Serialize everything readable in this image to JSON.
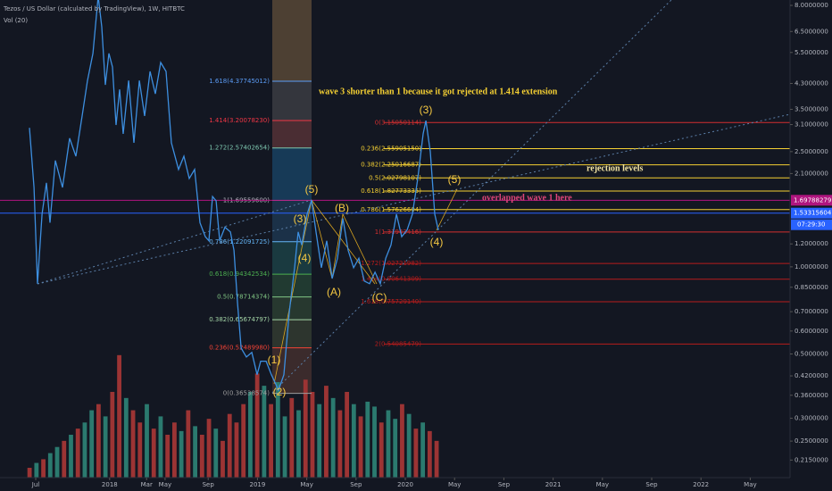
{
  "chart_data": {
    "type": "line",
    "title": "Tezos / US Dollar (calculated by TradingView), 1W, HITBTC",
    "subtitle": "Vol (20)",
    "log_scale": true,
    "xlim": [
      -2.9,
      61.23
    ],
    "xticks": [
      {
        "value": 0,
        "label": "Jul"
      },
      {
        "value": 6,
        "label": "2018"
      },
      {
        "value": 9,
        "label": "Mar"
      },
      {
        "value": 10.5,
        "label": "May"
      },
      {
        "value": 14,
        "label": "Sep"
      },
      {
        "value": 18,
        "label": "2019"
      },
      {
        "value": 22,
        "label": "May"
      },
      {
        "value": 26,
        "label": "Sep"
      },
      {
        "value": 30,
        "label": "2020"
      },
      {
        "value": 34,
        "label": "May"
      },
      {
        "value": 38,
        "label": "Sep"
      },
      {
        "value": 42,
        "label": "2021"
      },
      {
        "value": 46,
        "label": "May"
      },
      {
        "value": 50,
        "label": "Sep"
      },
      {
        "value": 54,
        "label": "2022"
      },
      {
        "value": 58,
        "label": "May"
      }
    ],
    "ylim": [
      0.187,
      8.35
    ],
    "yticks": [
      {
        "value": 8,
        "label": "8.0000000"
      },
      {
        "value": 6.5,
        "label": "6.5000000"
      },
      {
        "value": 5.5,
        "label": "5.5000000"
      },
      {
        "value": 4.3,
        "label": "4.3000000"
      },
      {
        "value": 3.5,
        "label": "3.5000000"
      },
      {
        "value": 3.1,
        "label": "3.1000000"
      },
      {
        "value": 2.5,
        "label": "2.5000000"
      },
      {
        "value": 2.1,
        "label": "2.1000000"
      },
      {
        "value": 1.2,
        "label": "1.2000000"
      },
      {
        "value": 1,
        "label": "1.0000000"
      },
      {
        "value": 0.85,
        "label": "0.8500000"
      },
      {
        "value": 0.7,
        "label": "0.7000000"
      },
      {
        "value": 0.6,
        "label": "0.6000000"
      },
      {
        "value": 0.5,
        "label": "0.5000000"
      },
      {
        "value": 0.42,
        "label": "0.4200000"
      },
      {
        "value": 0.36,
        "label": "0.3600000"
      },
      {
        "value": 0.3,
        "label": "0.3000000"
      },
      {
        "value": 0.25,
        "label": "0.2500000"
      },
      {
        "value": 0.215,
        "label": "0.2150000"
      }
    ],
    "series": [
      {
        "color": "#3d8fe0",
        "x": [
          -0.51,
          -0.14,
          0.14,
          0.51,
          0.87,
          1.16,
          1.59,
          2.17,
          2.75,
          3.26,
          3.77,
          4.2,
          4.64,
          5.07,
          5.36,
          5.65,
          5.94,
          6.23,
          6.52,
          6.81,
          7.1,
          7.54,
          7.97,
          8.41,
          8.84,
          9.28,
          9.71,
          10.14,
          10.58,
          11.01,
          11.59,
          12.03,
          12.46,
          12.9,
          13.33,
          13.77,
          14.06,
          14.35,
          14.64,
          14.93,
          15.36,
          15.8,
          16.09,
          16.38,
          16.67,
          17.1,
          17.54,
          17.97,
          18.26,
          18.7,
          19.13,
          19.71,
          20.14,
          20.58,
          21.01,
          21.3,
          21.59,
          22.03,
          22.39,
          22.75,
          23.19,
          23.62,
          24.06,
          24.49,
          24.93,
          25.36,
          25.8,
          26.23,
          26.67,
          27.1,
          27.54,
          27.97,
          28.41,
          28.84,
          29.28,
          29.71,
          30.14,
          30.58,
          31.01,
          31.45,
          31.67,
          32.03,
          32.39,
          32.68
        ],
        "values": [
          3.02,
          1.88,
          0.874,
          1.52,
          1.95,
          1.42,
          2.33,
          1.88,
          2.78,
          2.41,
          3.32,
          4.4,
          5.46,
          8.6,
          6.74,
          4.25,
          5.46,
          4.9,
          3.09,
          4.1,
          2.88,
          4.4,
          2.68,
          4.4,
          3.32,
          4.73,
          3.96,
          5.08,
          4.73,
          2.68,
          2.17,
          2.41,
          2.02,
          2.17,
          1.42,
          1.27,
          1.23,
          1.75,
          1.69,
          1.23,
          1.37,
          1.32,
          1.14,
          0.748,
          0.524,
          0.488,
          0.506,
          0.424,
          0.472,
          0.472,
          0.424,
          0.375,
          0.424,
          0.696,
          0.993,
          1.32,
          1.19,
          1.52,
          1.7,
          1.32,
          0.993,
          1.23,
          0.912,
          1.07,
          1.47,
          1.14,
          0.993,
          1.07,
          0.893,
          0.874,
          0.958,
          0.874,
          1.07,
          1.19,
          1.52,
          1.27,
          1.34,
          1.52,
          2.02,
          2.88,
          3.2,
          2.5,
          1.52,
          1.34
        ]
      }
    ],
    "volume": {
      "vol_ylim": [
        0,
        390
      ],
      "x": [
        -0.5,
        0.06,
        0.62,
        1.18,
        1.74,
        2.3,
        2.86,
        3.42,
        3.98,
        4.54,
        5.1,
        5.66,
        6.22,
        6.78,
        7.34,
        7.9,
        8.46,
        9.02,
        9.58,
        10.14,
        10.7,
        11.26,
        11.82,
        12.38,
        12.94,
        13.5,
        14.06,
        14.62,
        15.18,
        15.74,
        16.3,
        16.86,
        17.42,
        17.98,
        18.54,
        19.1,
        19.66,
        20.22,
        20.78,
        21.34,
        21.9,
        22.46,
        23.02,
        23.58,
        24.14,
        24.7,
        25.26,
        25.82,
        26.38,
        26.94,
        27.5,
        28.06,
        28.62,
        29.18,
        29.74,
        30.3,
        30.86,
        31.42,
        31.98,
        32.54
      ],
      "values": [
        8,
        12,
        15,
        20,
        25,
        30,
        35,
        40,
        45,
        55,
        60,
        50,
        70,
        100,
        65,
        55,
        45,
        60,
        40,
        50,
        35,
        45,
        38,
        55,
        42,
        35,
        48,
        40,
        30,
        52,
        45,
        60,
        70,
        85,
        75,
        60,
        78,
        50,
        65,
        55,
        80,
        70,
        60,
        75,
        65,
        55,
        70,
        60,
        50,
        62,
        58,
        45,
        55,
        48,
        60,
        52,
        40,
        45,
        38,
        30
      ],
      "colors": [
        "#9c3434",
        "#2b7a6f",
        "#9c3434",
        "#2b7a6f",
        "#2b7a6f",
        "#9c3434",
        "#2b7a6f",
        "#9c3434",
        "#2b7a6f",
        "#2b7a6f",
        "#9c3434",
        "#2b7a6f",
        "#9c3434",
        "#9c3434",
        "#2b7a6f",
        "#9c3434",
        "#9c3434",
        "#2b7a6f",
        "#9c3434",
        "#2b7a6f",
        "#9c3434",
        "#9c3434",
        "#2b7a6f",
        "#9c3434",
        "#2b7a6f",
        "#9c3434",
        "#9c3434",
        "#2b7a6f",
        "#9c3434",
        "#9c3434",
        "#9c3434",
        "#9c3434",
        "#2b7a6f",
        "#9c3434",
        "#2b7a6f",
        "#9c3434",
        "#2b7a6f",
        "#2b7a6f",
        "#9c3434",
        "#2b7a6f",
        "#9c3434",
        "#9c3434",
        "#2b7a6f",
        "#9c3434",
        "#2b7a6f",
        "#9c3434",
        "#9c3434",
        "#2b7a6f",
        "#9c3434",
        "#2b7a6f",
        "#2b7a6f",
        "#9c3434",
        "#2b7a6f",
        "#2b7a6f",
        "#9c3434",
        "#2b7a6f",
        "#9c3434",
        "#2b7a6f",
        "#9c3434",
        "#9c3434"
      ]
    },
    "fib_left": {
      "top_color": "#4d4033",
      "levels": [
        {
          "value": 4.37745012,
          "label": "1.618(4.37745012)",
          "color": "#5b9cf6",
          "zone": "#34363d"
        },
        {
          "value": 3.2007823,
          "label": "1.414(3.20078230)",
          "color": "#f23645",
          "zone": "#4a2d33"
        },
        {
          "value": 2.57402654,
          "label": "1.272(2.57402654)",
          "color": "#7ec8b0",
          "zone": "#173a57"
        },
        {
          "value": 1.695596,
          "label": "1(1.69559600)",
          "color": "#b2b5be",
          "zone": "#1b3148"
        },
        {
          "value": 1.22091725,
          "label": "0.786(1.22091725)",
          "color": "#64b5f6",
          "zone": "#1a3a40"
        },
        {
          "value": 0.94342534,
          "label": "0.618(0.94342534)",
          "color": "#4caf50",
          "zone": "#213a31"
        },
        {
          "value": 0.78714374,
          "label": "0.5(0.78714374)",
          "color": "#81c784",
          "zone": "#27382f"
        },
        {
          "value": 0.65674797,
          "label": "0.382(0.65674797)",
          "color": "#a5d6a7",
          "zone": "#2d352e"
        },
        {
          "value": 0.5248998,
          "label": "0.236(0.52489980)",
          "color": "#f44336",
          "zone": "#3b2b2c"
        },
        {
          "value": 0.36538574,
          "label": "0(0.36538574)",
          "color": "#9e9e9e",
          "zone": ""
        }
      ]
    },
    "fib_right": {
      "levels": [
        {
          "value": 3.15050114,
          "label": "0(3.15050114)",
          "color": "#d32f2f"
        },
        {
          "value": 2.5590515,
          "label": "0.236(2.55905150)",
          "color": "#f5d033"
        },
        {
          "value": 2.25016687,
          "label": "0.382(2.25016687)",
          "color": "#f5d033"
        },
        {
          "value": 2.02798107,
          "label": "0.5(2.02798107)",
          "color": "#f5d033"
        },
        {
          "value": 1.82773335,
          "label": "0.618(1.82773335)",
          "color": "#f5d033"
        },
        {
          "value": 1.57626604,
          "label": "0.786(1.57626604)",
          "color": "#f5d033"
        },
        {
          "value": 1.31943416,
          "label": "1(1.31943416)",
          "color": "#d32f2f"
        },
        {
          "value": 1.02721982,
          "label": "1.272(1.02721982)",
          "color": "#b71c1c"
        },
        {
          "value": 0.90641309,
          "label": "1.414(0.90641309)",
          "color": "#b71c1c"
        },
        {
          "value": 0.7572914,
          "label": "1.618(0.75729140)",
          "color": "#b71c1c"
        },
        {
          "value": 0.54085479,
          "label": "2(0.54085479)",
          "color": "#b71c1c"
        }
      ]
    },
    "price_labels": [
      {
        "value": 1.69788279,
        "color": "#b0157f"
      },
      {
        "value": 1.53315604,
        "color": "#2962ff"
      }
    ],
    "countdown": "07:29:30",
    "waves": [
      "(1)",
      "(2)",
      "(3)",
      "(4)",
      "(5)",
      "(A)",
      "(B)",
      "(C)",
      "(3)",
      "(4)",
      "(5)"
    ],
    "annotations": [
      "wave 3 shorter than 1 because it got rejected at 1.414 extension",
      "rejection levels",
      "overlapped wave 1 here"
    ]
  }
}
